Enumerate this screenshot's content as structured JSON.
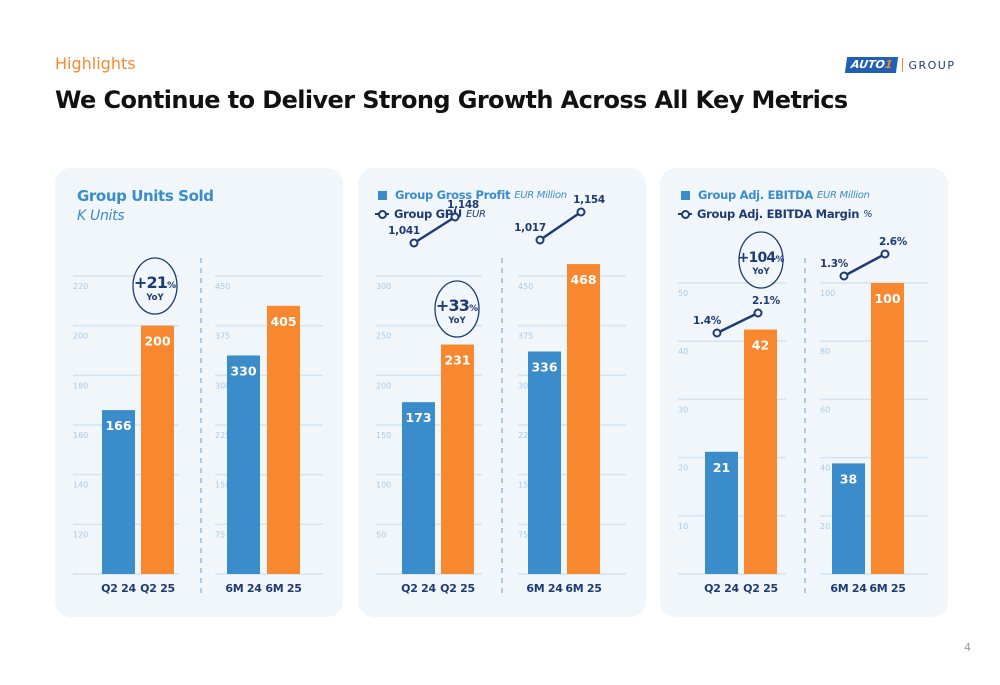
{
  "header": {
    "section_label": "Highlights",
    "title": "We Continue to Deliver Strong Growth Across All Key Metrics",
    "logo": {
      "brand": "AUTO",
      "brand_number": "1",
      "group": "GROUP"
    }
  },
  "page_number": "4",
  "colors": {
    "prior_year_bar": "#3a8ccb",
    "current_year_bar": "#f7882f",
    "line": "#1f3b73",
    "grid": "#d3e3f1",
    "axis_tick": "#a9c9e6",
    "panel_bg": "#f1f6fa",
    "accent_orange": "#f7882f"
  },
  "panels": [
    {
      "title": "Group Units Sold",
      "subtitle": "K Units",
      "yoy": {
        "value": "+21",
        "unit": "%",
        "label": "YoY"
      }
    },
    {
      "legend": [
        {
          "label": "Group Gross Profit",
          "unit": "EUR Million",
          "type": "bar"
        },
        {
          "label": "Group GPU",
          "unit": "EUR",
          "type": "line"
        }
      ],
      "yoy": {
        "value": "+33",
        "unit": "%",
        "label": "YoY"
      }
    },
    {
      "legend": [
        {
          "label": "Group Adj. EBITDA",
          "unit": "EUR Million",
          "type": "bar"
        },
        {
          "label": "Group Adj. EBITDA Margin",
          "unit": "%",
          "type": "line"
        }
      ],
      "yoy": {
        "value": "+104",
        "unit": "%",
        "label": "YoY"
      }
    }
  ],
  "chart_data": [
    {
      "type": "bar",
      "title": "Group Units Sold",
      "ylabel": "K Units",
      "subcharts": [
        {
          "categories": [
            "Q2 24",
            "Q2 25"
          ],
          "values": [
            166,
            200
          ],
          "value_labels": [
            "166",
            "200"
          ],
          "ylim": [
            100,
            220
          ],
          "yticks": [
            120,
            140,
            160,
            180,
            200,
            220
          ]
        },
        {
          "categories": [
            "6M 24",
            "6M 25"
          ],
          "values": [
            330,
            405
          ],
          "value_labels": [
            "330",
            "405"
          ],
          "ylim": [
            0,
            450
          ],
          "yticks": [
            75,
            150,
            225,
            300,
            375,
            450
          ]
        }
      ],
      "annotation": "+21% YoY",
      "grid": true
    },
    {
      "type": "bar",
      "title": "Group Gross Profit",
      "ylabel": "EUR Million",
      "series": [
        {
          "name": "Group Gross Profit (EUR Million)",
          "kind": "bar"
        },
        {
          "name": "Group GPU (EUR)",
          "kind": "line"
        }
      ],
      "subcharts": [
        {
          "categories": [
            "Q2 24",
            "Q2 25"
          ],
          "values": [
            173,
            231
          ],
          "value_labels": [
            "173",
            "231"
          ],
          "line_values": [
            1041,
            1148
          ],
          "line_labels": [
            "1,041",
            "1,148"
          ],
          "ylim": [
            0,
            300
          ],
          "yticks": [
            50,
            100,
            150,
            200,
            250,
            300
          ]
        },
        {
          "categories": [
            "6M 24",
            "6M 25"
          ],
          "values": [
            336,
            468
          ],
          "value_labels": [
            "336",
            "468"
          ],
          "line_values": [
            1017,
            1154
          ],
          "line_labels": [
            "1,017",
            "1,154"
          ],
          "ylim": [
            0,
            450
          ],
          "yticks": [
            75,
            150,
            225,
            300,
            375,
            450
          ]
        }
      ],
      "annotation": "+33% YoY",
      "grid": true
    },
    {
      "type": "bar",
      "title": "Group Adj. EBITDA",
      "ylabel": "EUR Million",
      "series": [
        {
          "name": "Group Adj. EBITDA (EUR Million)",
          "kind": "bar"
        },
        {
          "name": "Group Adj. EBITDA Margin (%)",
          "kind": "line"
        }
      ],
      "subcharts": [
        {
          "categories": [
            "Q2 24",
            "Q2 25"
          ],
          "values": [
            21,
            42
          ],
          "value_labels": [
            "21",
            "42"
          ],
          "line_values": [
            1.4,
            2.1
          ],
          "line_labels": [
            "1.4%",
            "2.1%"
          ],
          "ylim": [
            0,
            50
          ],
          "yticks": [
            10,
            20,
            30,
            40,
            50
          ]
        },
        {
          "categories": [
            "6M 24",
            "6M 25"
          ],
          "values": [
            38,
            100
          ],
          "value_labels": [
            "38",
            "100"
          ],
          "line_values": [
            1.3,
            2.6
          ],
          "line_labels": [
            "1.3%",
            "2.6%"
          ],
          "ylim": [
            0,
            100
          ],
          "yticks": [
            20,
            40,
            60,
            80,
            100
          ]
        }
      ],
      "annotation": "+104% YoY",
      "grid": true
    }
  ]
}
